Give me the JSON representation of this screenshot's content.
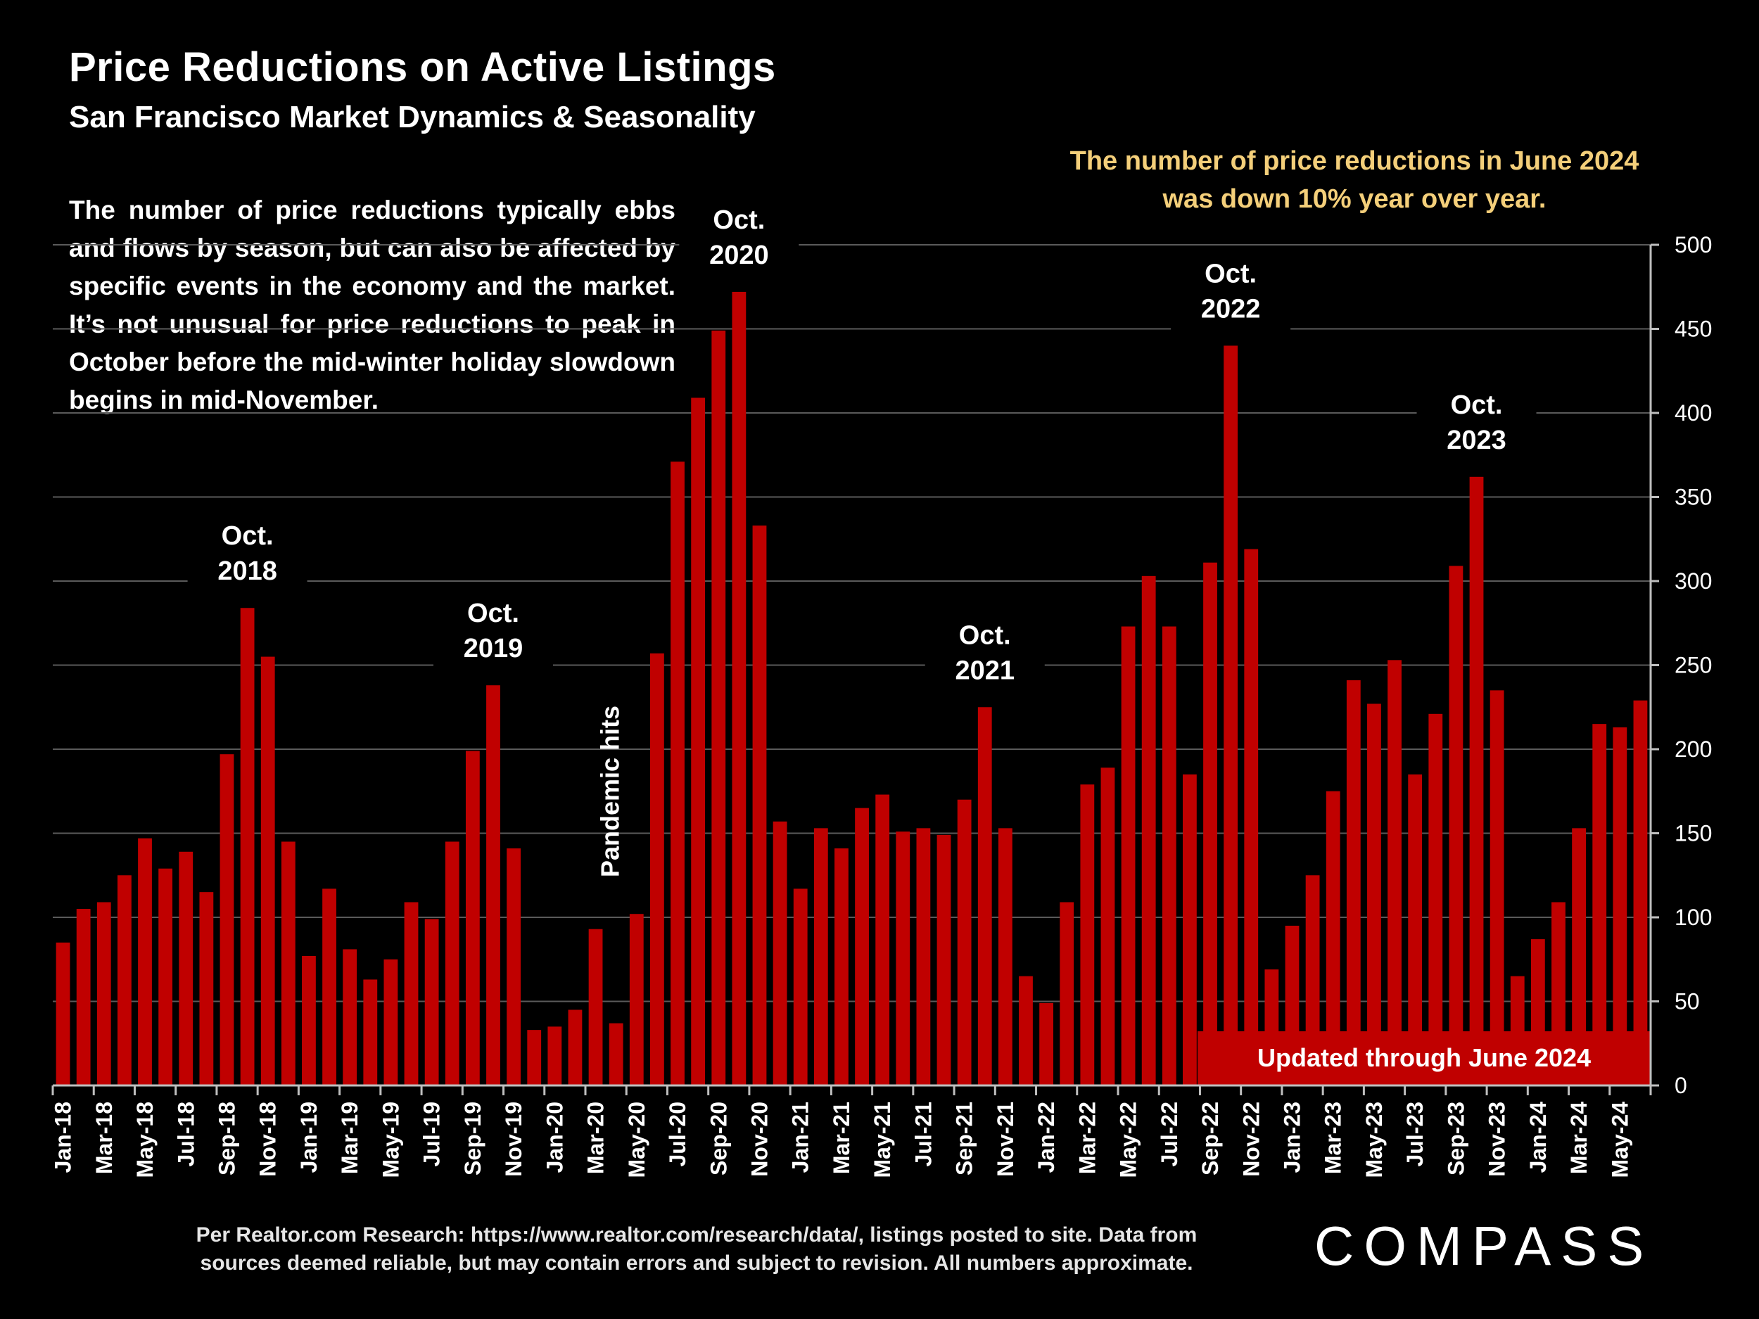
{
  "header": {
    "title": "Price Reductions on Active Listings",
    "subtitle": "San Francisco Market Dynamics & Seasonality"
  },
  "description": "The number of price reductions typically ebbs and flows by season, but can also be affected by specific events in the economy and the market. It’s not unusual for price reductions to peak in October before the mid-winter holiday slowdown begins in mid-November.",
  "callout": "The number of price reductions in June 2024 was down 10% year over year.",
  "footnote": {
    "line1": "Per Realtor.com Research:  https://www.realtor.com/research/data/, listings posted to site. Data from",
    "line2": "sources deemed reliable, but may contain errors and subject to revision. All numbers approximate."
  },
  "logo": "COMPASS",
  "colors": {
    "background": "#000000",
    "bar": "#c00000",
    "callout": "#f4cf7a",
    "grid": "#5a5a5a"
  },
  "chart_data": {
    "type": "bar",
    "title": "Price Reductions on Active Listings",
    "y_axis_side": "right",
    "ylim": [
      0,
      500
    ],
    "y_ticks": [
      0,
      50,
      100,
      150,
      200,
      250,
      300,
      350,
      400,
      450,
      500
    ],
    "grid": true,
    "categories": [
      "Jan-18",
      "Feb-18",
      "Mar-18",
      "Apr-18",
      "May-18",
      "Jun-18",
      "Jul-18",
      "Aug-18",
      "Sep-18",
      "Oct-18",
      "Nov-18",
      "Dec-18",
      "Jan-19",
      "Feb-19",
      "Mar-19",
      "Apr-19",
      "May-19",
      "Jun-19",
      "Jul-19",
      "Aug-19",
      "Sep-19",
      "Oct-19",
      "Nov-19",
      "Dec-19",
      "Jan-20",
      "Feb-20",
      "Mar-20",
      "Apr-20",
      "May-20",
      "Jun-20",
      "Jul-20",
      "Aug-20",
      "Sep-20",
      "Oct-20",
      "Nov-20",
      "Dec-20",
      "Jan-21",
      "Feb-21",
      "Mar-21",
      "Apr-21",
      "May-21",
      "Jun-21",
      "Jul-21",
      "Aug-21",
      "Sep-21",
      "Oct-21",
      "Nov-21",
      "Dec-21",
      "Jan-22",
      "Feb-22",
      "Mar-22",
      "Apr-22",
      "May-22",
      "Jun-22",
      "Jul-22",
      "Aug-22",
      "Sep-22",
      "Oct-22",
      "Nov-22",
      "Dec-22",
      "Jan-23",
      "Feb-23",
      "Mar-23",
      "Apr-23",
      "May-23",
      "Jun-23",
      "Jul-23",
      "Aug-23",
      "Sep-23",
      "Oct-23",
      "Nov-23",
      "Dec-23",
      "Jan-24",
      "Feb-24",
      "Mar-24",
      "Apr-24",
      "May-24",
      "Jun-24"
    ],
    "x_tick_labels": [
      "Jan-18",
      "Mar-18",
      "May-18",
      "Jul-18",
      "Sep-18",
      "Nov-18",
      "Jan-19",
      "Mar-19",
      "May-19",
      "Jul-19",
      "Sep-19",
      "Nov-19",
      "Jan-20",
      "Mar-20",
      "May-20",
      "Jul-20",
      "Sep-20",
      "Nov-20",
      "Jan-21",
      "Mar-21",
      "May-21",
      "Jul-21",
      "Sep-21",
      "Nov-21",
      "Jan-22",
      "Mar-22",
      "May-22",
      "Jul-22",
      "Sep-22",
      "Nov-22",
      "Jan-23",
      "Mar-23",
      "May-23",
      "Jul-23",
      "Sep-23",
      "Nov-23",
      "Jan-24",
      "Mar-24",
      "May-24"
    ],
    "values": [
      85,
      105,
      109,
      125,
      147,
      129,
      139,
      115,
      197,
      284,
      255,
      145,
      77,
      117,
      81,
      63,
      75,
      109,
      99,
      145,
      199,
      238,
      141,
      33,
      35,
      45,
      93,
      37,
      102,
      257,
      371,
      409,
      449,
      472,
      333,
      157,
      117,
      153,
      141,
      165,
      173,
      151,
      153,
      149,
      170,
      225,
      153,
      65,
      49,
      109,
      179,
      189,
      273,
      303,
      273,
      185,
      311,
      440,
      319,
      69,
      95,
      125,
      175,
      241,
      227,
      253,
      185,
      221,
      309,
      362,
      235,
      65,
      87,
      109,
      153,
      215,
      213,
      229
    ],
    "annotations": [
      {
        "line1": "Oct.",
        "line2": "2018",
        "month_index": 9
      },
      {
        "line1": "Oct.",
        "line2": "2019",
        "month_index": 21
      },
      {
        "line1": "Oct.",
        "line2": "2020",
        "month_index": 33
      },
      {
        "line1": "Oct.",
        "line2": "2021",
        "month_index": 45
      },
      {
        "line1": "Oct.",
        "line2": "2022",
        "month_index": 57
      },
      {
        "line1": "Oct.",
        "line2": "2023",
        "month_index": 69
      }
    ],
    "pandemic_label": "Pandemic hits",
    "updated_label": "Updated through June 2024"
  }
}
